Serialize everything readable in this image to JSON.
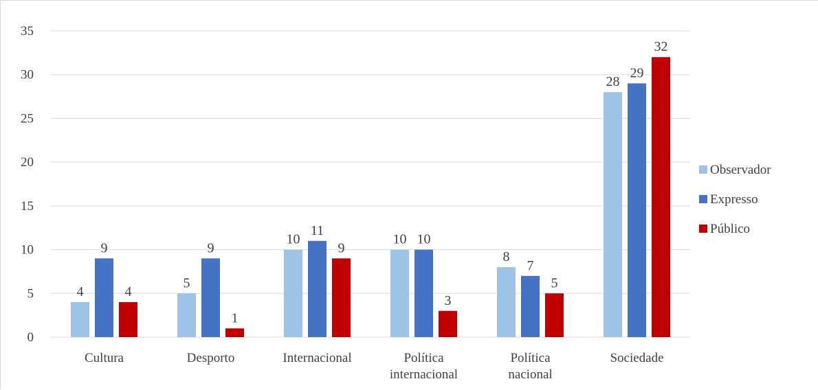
{
  "chart_data": {
    "type": "bar",
    "categories": [
      [
        "Cultura"
      ],
      [
        "Desporto"
      ],
      [
        "Internacional"
      ],
      [
        "Política",
        "internacional"
      ],
      [
        "Política",
        "nacional"
      ],
      [
        "Sociedade"
      ]
    ],
    "series": [
      {
        "name": "Observador",
        "color": "#9dc3e6",
        "values": [
          4,
          5,
          10,
          10,
          8,
          28
        ]
      },
      {
        "name": "Expresso",
        "color": "#4472c4",
        "values": [
          9,
          9,
          11,
          10,
          7,
          29
        ]
      },
      {
        "name": "Público",
        "color": "#c00000",
        "values": [
          4,
          1,
          9,
          3,
          5,
          32
        ]
      }
    ],
    "ylim": [
      0,
      35
    ],
    "yticks": [
      0,
      5,
      10,
      15,
      20,
      25,
      30,
      35
    ],
    "grid": true,
    "legend_position": "right",
    "data_labels": true
  }
}
